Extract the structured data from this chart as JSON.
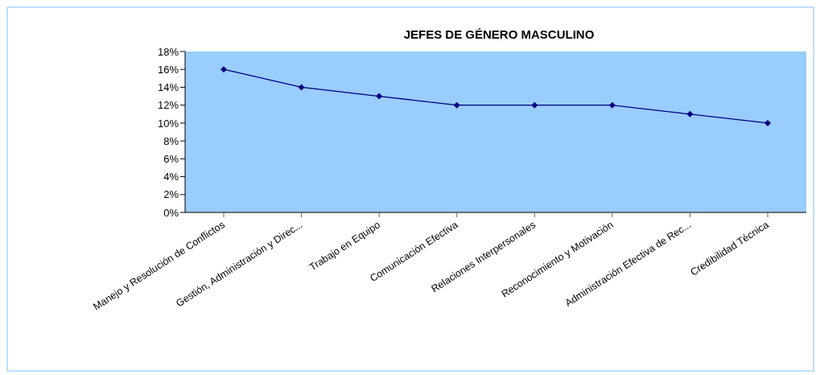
{
  "chart_data": {
    "type": "line",
    "title": "JEFES DE GÉNERO MASCULINO",
    "categories": [
      "Manejo y Resolución de Conflictos",
      "Gestión, Administración y Direc...",
      "Trabajo en Equipo",
      "Comunicación Efectiva",
      "Relaciones Interpersonales",
      "Reconocimiento y Motivación",
      "Administración Efectiva de Rec...",
      "Credibilidad Técnica"
    ],
    "series": [
      {
        "color": "#000080",
        "values": [
          16,
          14,
          13,
          12,
          12,
          12,
          11,
          10
        ]
      }
    ],
    "ylim": [
      0,
      18
    ],
    "yticks": [
      {
        "value": 0,
        "label": "0%"
      },
      {
        "value": 2,
        "label": "2%"
      },
      {
        "value": 4,
        "label": "4%"
      },
      {
        "value": 6,
        "label": "6%"
      },
      {
        "value": 8,
        "label": "8%"
      },
      {
        "value": 10,
        "label": "10%"
      },
      {
        "value": 12,
        "label": "12%"
      },
      {
        "value": 14,
        "label": "14%"
      },
      {
        "value": 16,
        "label": "16%"
      },
      {
        "value": 18,
        "label": "18%"
      }
    ],
    "grid": false,
    "marker": "diamond",
    "line_style": "solid"
  }
}
